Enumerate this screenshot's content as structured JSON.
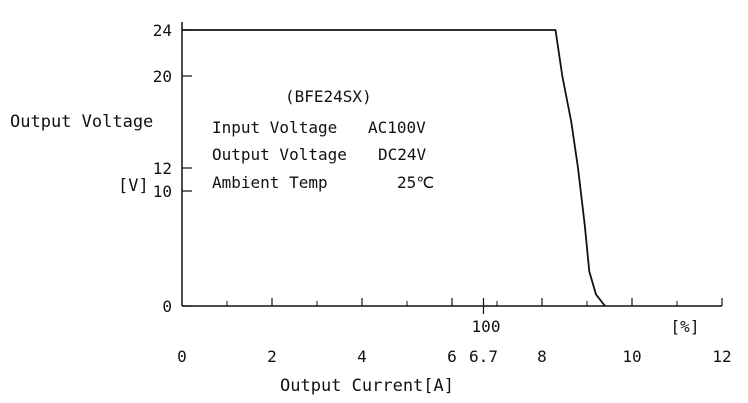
{
  "chart_data": {
    "type": "line",
    "title": "",
    "xlabel": "Output Current[A]",
    "ylabel": "Output Voltage",
    "ylabel_unit": "[V]",
    "xlim": [
      0,
      12
    ],
    "ylim": [
      0,
      24
    ],
    "x_ticks": [
      "0",
      "2",
      "4",
      "6",
      "6.7",
      "8",
      "10",
      "12"
    ],
    "y_ticks": [
      "0",
      "10",
      "12",
      "20",
      "24"
    ],
    "secondary_x_tick": "100",
    "secondary_x_unit": "[%]",
    "grid": false,
    "series": [
      {
        "x": [
          0,
          8.3,
          8.45,
          8.65,
          8.8,
          8.95,
          9.05,
          9.2,
          9.4
        ],
        "y": [
          24,
          24,
          20,
          16,
          12,
          7,
          3,
          1,
          0
        ]
      }
    ],
    "annotations": {
      "model": "(BFE24SX)",
      "rows": [
        {
          "label": "Input Voltage",
          "value": "AC100V"
        },
        {
          "label": "Output Voltage",
          "value": "DC24V"
        },
        {
          "label": "Ambient Temp",
          "value": "25℃"
        }
      ]
    }
  }
}
